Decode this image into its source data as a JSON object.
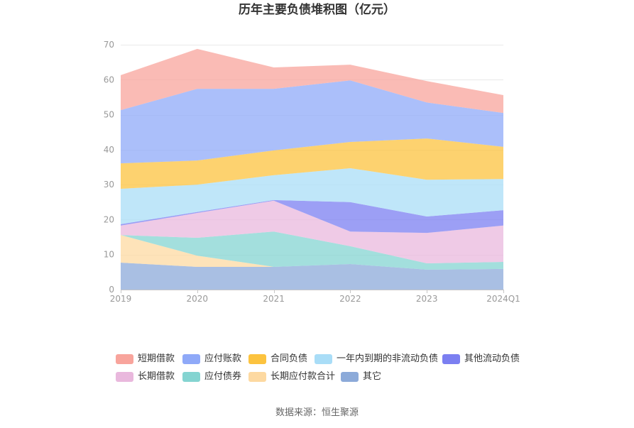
{
  "source": "数据来源：恒生聚源",
  "chart_data": {
    "type": "area",
    "stacked": true,
    "title": "历年主要负债堆积图（亿元）",
    "categories": [
      "2019",
      "2020",
      "2021",
      "2022",
      "2023",
      "2024Q1"
    ],
    "ylim": [
      0,
      70
    ],
    "yticks": [
      0,
      10,
      20,
      30,
      40,
      50,
      60,
      70
    ],
    "grid": true,
    "legend": "bottom",
    "series": [
      {
        "name": "短期借款",
        "color": "#f8a49c",
        "values": [
          10.0,
          11.4,
          6.1,
          4.5,
          6.1,
          5.1
        ]
      },
      {
        "name": "应付账款",
        "color": "#8fa9f8",
        "values": [
          15.2,
          20.5,
          17.6,
          17.6,
          10.3,
          9.7
        ]
      },
      {
        "name": "合同负债",
        "color": "#fcc33f",
        "values": [
          7.3,
          6.9,
          7.1,
          7.5,
          11.8,
          9.2
        ]
      },
      {
        "name": "一年内到期的非流动负债",
        "color": "#a9ddf7",
        "values": [
          10.1,
          7.8,
          7.1,
          9.7,
          10.5,
          8.9
        ]
      },
      {
        "name": "其他流动负债",
        "color": "#7b7ff1",
        "values": [
          0.4,
          0.3,
          0.2,
          8.4,
          4.7,
          4.4
        ]
      },
      {
        "name": "长期借款",
        "color": "#e9b8dd",
        "values": [
          2.7,
          7.1,
          8.8,
          4.2,
          8.7,
          10.4
        ]
      },
      {
        "name": "应付债券",
        "color": "#84d4d1",
        "values": [
          0,
          5.1,
          10.1,
          5.1,
          1.8,
          2.0
        ]
      },
      {
        "name": "长期应付款合计",
        "color": "#fdd9a1",
        "values": [
          7.9,
          3.2,
          0,
          0,
          0,
          0
        ]
      },
      {
        "name": "其它",
        "color": "#8caad9",
        "values": [
          7.7,
          6.5,
          6.5,
          7.3,
          5.7,
          5.9
        ]
      }
    ]
  }
}
